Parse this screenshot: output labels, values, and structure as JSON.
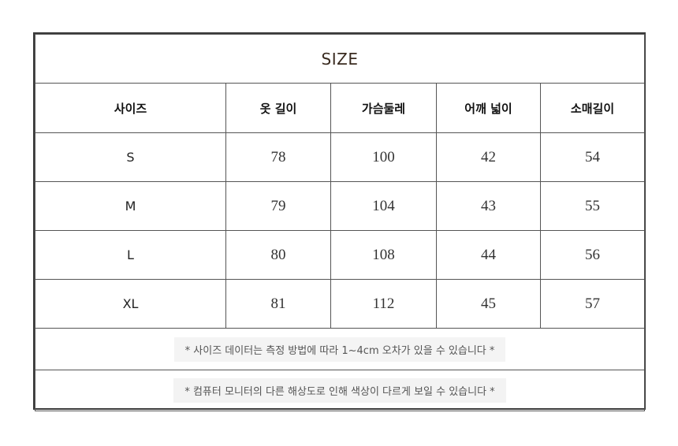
{
  "title": "SIZE",
  "headers": [
    "사이즈",
    "옷 길이",
    "가슴둘레",
    "어깨 넓이",
    "소매길이"
  ],
  "rows": [
    {
      "size": "S",
      "length": "78",
      "chest": "100",
      "shoulder": "42",
      "sleeve": "54"
    },
    {
      "size": "M",
      "length": "79",
      "chest": "104",
      "shoulder": "43",
      "sleeve": "55"
    },
    {
      "size": "L",
      "length": "80",
      "chest": "108",
      "shoulder": "44",
      "sleeve": "56"
    },
    {
      "size": "XL",
      "length": "81",
      "chest": "112",
      "shoulder": "45",
      "sleeve": "57"
    }
  ],
  "notes": [
    "* 사이즈 데이터는 측정 방법에 따라 1~4cm 오차가 있을 수 있습니다 *",
    "* 컴퓨터 모니터의 다른 해상도로 인해 색상이 다르게 보일 수 있습니다 *"
  ]
}
